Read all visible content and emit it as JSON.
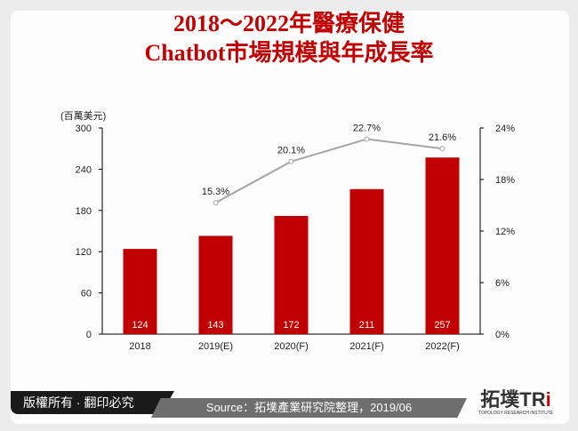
{
  "title_line1": "2018～2022年醫療保健",
  "title_line2": "Chatbot市場規模與年成長率",
  "footer": {
    "copyright": "版權所有 · 翻印必究",
    "source": "Source：拓墣產業研究院整理，2019/06",
    "logo": "拓墣TRi",
    "logo_sub": "TOPOLOGY RESEARCH INSTITUTE"
  },
  "colors": {
    "bar": "#c00000",
    "line": "#a6a6a6",
    "title": "#c00000"
  },
  "chart_data": {
    "type": "bar+line",
    "categories": [
      "2018",
      "2019(E)",
      "2020(F)",
      "2021(F)",
      "2022(F)"
    ],
    "bar_values": [
      124,
      143,
      172,
      211,
      257
    ],
    "bar_labels": [
      "124",
      "143",
      "172",
      "211",
      "257"
    ],
    "line_values": [
      null,
      15.3,
      20.1,
      22.7,
      21.6
    ],
    "line_labels": [
      "",
      "15.3%",
      "20.1%",
      "22.7%",
      "21.6%"
    ],
    "y_left": {
      "unit_label": "(百萬美元)",
      "range": [
        0,
        300
      ],
      "ticks": [
        "0",
        "60",
        "120",
        "180",
        "240",
        "300"
      ]
    },
    "y_right": {
      "range": [
        0,
        24
      ],
      "ticks": [
        "0%",
        "6%",
        "12%",
        "18%",
        "24%"
      ]
    },
    "grid": false,
    "legend": "none"
  }
}
